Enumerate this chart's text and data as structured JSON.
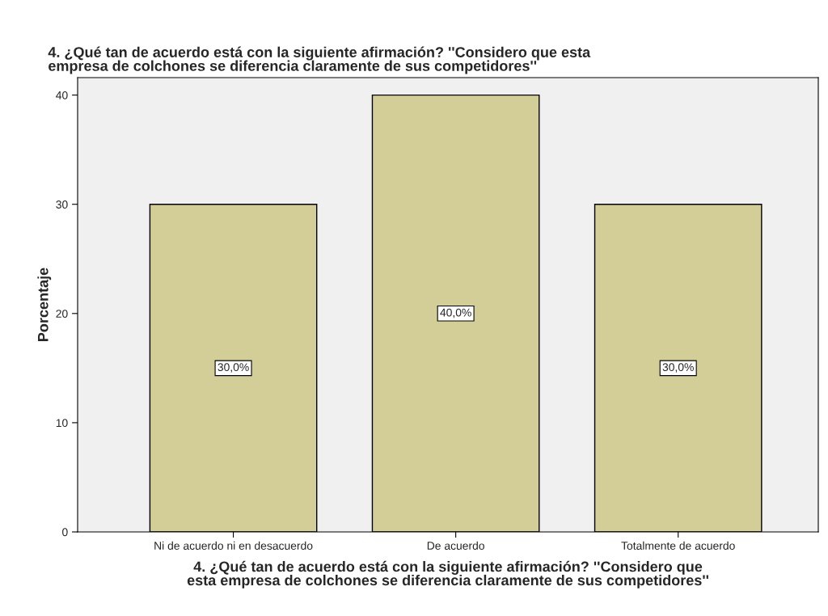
{
  "chart_data": {
    "type": "bar",
    "title": "4. ¿Qué tan de acuerdo está con la siguiente afirmación? ''Considero que esta\nempresa de colchones se diferencia claramente de sus competidores''",
    "xlabel": "4. ¿Qué tan de acuerdo está con la siguiente afirmación? ''Considero que\nesta empresa de colchones se diferencia claramente de sus competidores''",
    "ylabel": "Porcentaje",
    "categories": [
      "Ni de acuerdo ni en desacuerdo",
      "De acuerdo",
      "Totalmente de acuerdo"
    ],
    "values": [
      30,
      40,
      30
    ],
    "value_labels": [
      "30,0%",
      "40,0%",
      "30,0%"
    ],
    "color": "#d3ce97",
    "ylim": [
      0,
      41.6
    ],
    "yticks": [
      0,
      10,
      20,
      30,
      40
    ],
    "grid": false,
    "legend": false
  }
}
